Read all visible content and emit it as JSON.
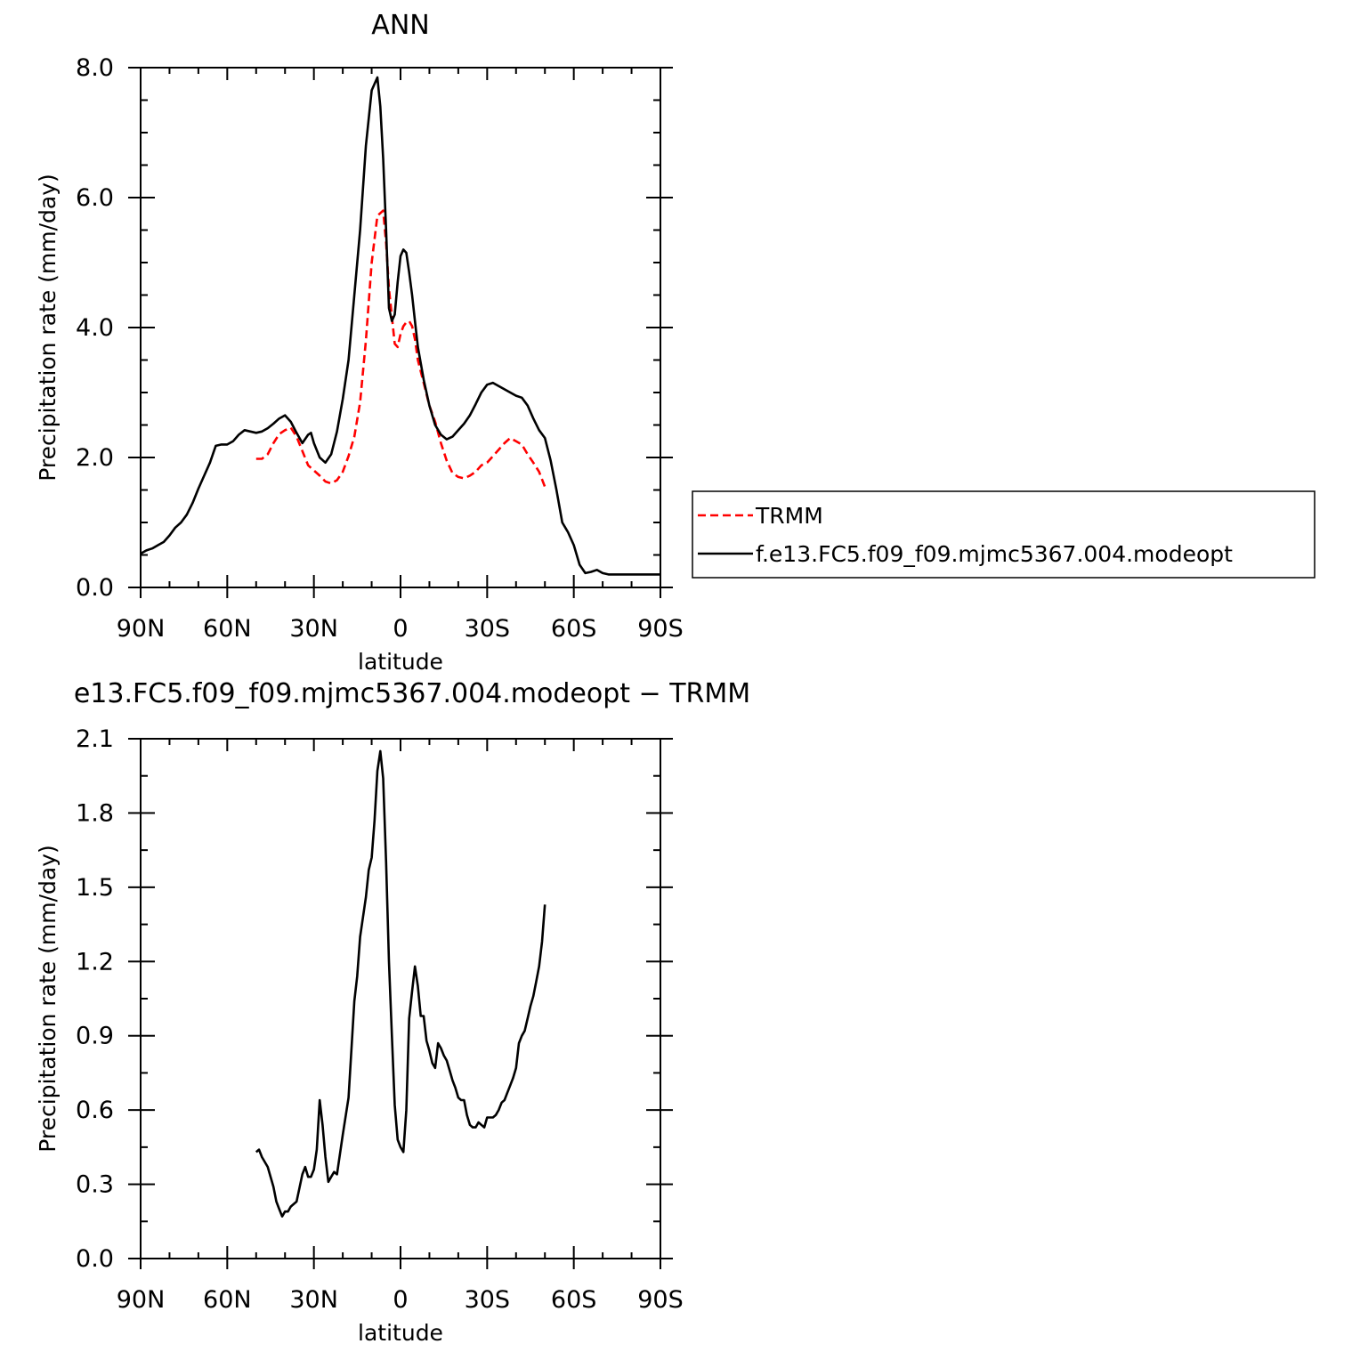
{
  "chart_data": [
    {
      "type": "line",
      "title": "ANN",
      "xlabel": "latitude",
      "ylabel": "Precipitation rate (mm/day)",
      "xlim": [
        90,
        -90
      ],
      "ylim": [
        0,
        8
      ],
      "x_ticks": [
        {
          "value": 90,
          "label": "90N"
        },
        {
          "value": 60,
          "label": "60N"
        },
        {
          "value": 30,
          "label": "30N"
        },
        {
          "value": 0,
          "label": "0"
        },
        {
          "value": -30,
          "label": "30S"
        },
        {
          "value": -60,
          "label": "60S"
        },
        {
          "value": -90,
          "label": "90S"
        }
      ],
      "y_ticks": [
        {
          "value": 0,
          "label": "0.0"
        },
        {
          "value": 2,
          "label": "2.0"
        },
        {
          "value": 4,
          "label": "4.0"
        },
        {
          "value": 6,
          "label": "6.0"
        },
        {
          "value": 8,
          "label": "8.0"
        }
      ],
      "legend": "right",
      "series": [
        {
          "name": "TRMM",
          "color": "#ff0000",
          "dash": "dashed",
          "x": [
            50,
            48,
            46,
            44,
            42,
            40,
            38,
            36,
            34,
            32,
            30,
            28,
            26,
            24,
            22,
            20,
            18,
            16,
            14,
            12,
            10,
            8,
            6,
            5,
            4,
            2,
            1,
            0,
            -1,
            -2,
            -3,
            -4,
            -5,
            -6,
            -8,
            -10,
            -12,
            -14,
            -16,
            -18,
            -20,
            -22,
            -24,
            -26,
            -28,
            -30,
            -32,
            -34,
            -36,
            -38,
            -40,
            -42,
            -44,
            -46,
            -48,
            -50
          ],
          "y": [
            1.98,
            1.98,
            2.05,
            2.22,
            2.36,
            2.42,
            2.46,
            2.32,
            2.1,
            1.88,
            1.8,
            1.72,
            1.63,
            1.6,
            1.65,
            1.78,
            2.02,
            2.32,
            2.85,
            3.8,
            5.0,
            5.72,
            5.8,
            5.3,
            4.6,
            3.75,
            3.7,
            3.9,
            4.02,
            4.08,
            4.1,
            4.02,
            3.82,
            3.5,
            3.15,
            2.8,
            2.55,
            2.22,
            1.95,
            1.76,
            1.7,
            1.68,
            1.72,
            1.78,
            1.88,
            1.92,
            2.02,
            2.12,
            2.22,
            2.3,
            2.25,
            2.2,
            2.05,
            1.92,
            1.78,
            1.55
          ]
        },
        {
          "name": "f.e13.FC5.f09_f09.mjmc5367.004.modeopt",
          "color": "#000000",
          "dash": "solid",
          "x": [
            90,
            88,
            86,
            84,
            82,
            80,
            78,
            76,
            74,
            72,
            70,
            68,
            66,
            64,
            62,
            60,
            58,
            56,
            54,
            52,
            50,
            48,
            46,
            44,
            42,
            40,
            38,
            36,
            34,
            32,
            31,
            30,
            28,
            26,
            24,
            22,
            20,
            18,
            16,
            14,
            12,
            10,
            8,
            7,
            6,
            5,
            4,
            3,
            2,
            1,
            0,
            -1,
            -2,
            -3,
            -4,
            -5,
            -6,
            -8,
            -10,
            -12,
            -14,
            -16,
            -18,
            -20,
            -22,
            -24,
            -26,
            -28,
            -30,
            -32,
            -34,
            -36,
            -38,
            -40,
            -42,
            -44,
            -46,
            -48,
            -50,
            -52,
            -54,
            -56,
            -58,
            -60,
            -62,
            -64,
            -66,
            -68,
            -70,
            -72,
            -74,
            -76,
            -78,
            -80,
            -82,
            -84,
            -86,
            -88,
            -90
          ],
          "y": [
            0.52,
            0.57,
            0.6,
            0.65,
            0.7,
            0.8,
            0.92,
            1.0,
            1.12,
            1.3,
            1.52,
            1.72,
            1.92,
            2.18,
            2.2,
            2.2,
            2.25,
            2.35,
            2.42,
            2.4,
            2.38,
            2.4,
            2.45,
            2.52,
            2.6,
            2.65,
            2.55,
            2.38,
            2.22,
            2.35,
            2.38,
            2.22,
            2.0,
            1.92,
            2.05,
            2.4,
            2.9,
            3.5,
            4.5,
            5.5,
            6.8,
            7.65,
            7.85,
            7.4,
            6.6,
            5.5,
            4.3,
            4.1,
            4.2,
            4.7,
            5.1,
            5.2,
            5.15,
            4.85,
            4.5,
            4.1,
            3.7,
            3.2,
            2.8,
            2.5,
            2.35,
            2.28,
            2.32,
            2.42,
            2.52,
            2.65,
            2.82,
            3.0,
            3.12,
            3.15,
            3.1,
            3.05,
            3.0,
            2.95,
            2.92,
            2.8,
            2.6,
            2.42,
            2.3,
            1.95,
            1.5,
            1.0,
            0.85,
            0.65,
            0.35,
            0.22,
            0.24,
            0.27,
            0.22,
            0.2,
            0.2,
            0.2,
            0.2,
            0.2,
            0.2,
            0.2,
            0.2,
            0.2,
            0.2
          ]
        }
      ]
    },
    {
      "type": "line",
      "title": "e13.FC5.f09_f09.mjmc5367.004.modeopt − TRMM",
      "xlabel": "latitude",
      "ylabel": "Precipitation rate (mm/day)",
      "xlim": [
        90,
        -90
      ],
      "ylim": [
        0,
        2.1
      ],
      "x_ticks": [
        {
          "value": 90,
          "label": "90N"
        },
        {
          "value": 60,
          "label": "60N"
        },
        {
          "value": 30,
          "label": "30N"
        },
        {
          "value": 0,
          "label": "0"
        },
        {
          "value": -30,
          "label": "30S"
        },
        {
          "value": -60,
          "label": "60S"
        },
        {
          "value": -90,
          "label": "90S"
        }
      ],
      "y_ticks": [
        {
          "value": 0,
          "label": "0.0"
        },
        {
          "value": 0.3,
          "label": "0.3"
        },
        {
          "value": 0.6,
          "label": "0.6"
        },
        {
          "value": 0.9,
          "label": "0.9"
        },
        {
          "value": 1.2,
          "label": "1.2"
        },
        {
          "value": 1.5,
          "label": "1.5"
        },
        {
          "value": 1.8,
          "label": "1.8"
        },
        {
          "value": 2.1,
          "label": "2.1"
        }
      ],
      "series": [
        {
          "color": "#000000",
          "dash": "solid",
          "x": [
            50,
            49,
            48,
            46,
            44,
            43,
            42,
            41,
            40,
            39,
            38,
            36,
            34,
            33,
            32,
            31,
            30,
            29,
            28,
            27,
            26,
            25,
            24,
            23,
            22,
            20,
            18,
            16,
            15,
            14,
            12,
            11,
            10,
            9,
            8,
            7,
            6,
            5,
            4,
            3,
            2,
            1,
            0,
            -1,
            -2,
            -3,
            -4,
            -5,
            -6,
            -7,
            -8,
            -9,
            -10,
            -11,
            -12,
            -13,
            -14,
            -15,
            -16,
            -17,
            -18,
            -19,
            -20,
            -21,
            -22,
            -23,
            -24,
            -25,
            -26,
            -27,
            -28,
            -29,
            -30,
            -31,
            -32,
            -33,
            -34,
            -35,
            -36,
            -37,
            -38,
            -39,
            -40,
            -41,
            -42,
            -43,
            -44,
            -45,
            -46,
            -47,
            -48,
            -49,
            -50
          ],
          "y": [
            0.43,
            0.44,
            0.41,
            0.37,
            0.29,
            0.23,
            0.2,
            0.17,
            0.19,
            0.19,
            0.21,
            0.23,
            0.34,
            0.37,
            0.33,
            0.33,
            0.36,
            0.44,
            0.64,
            0.54,
            0.41,
            0.31,
            0.33,
            0.35,
            0.34,
            0.5,
            0.65,
            1.04,
            1.14,
            1.3,
            1.46,
            1.57,
            1.62,
            1.77,
            1.97,
            2.05,
            1.94,
            1.6,
            1.2,
            0.9,
            0.62,
            0.48,
            0.45,
            0.43,
            0.6,
            0.97,
            1.08,
            1.18,
            1.1,
            0.98,
            0.98,
            0.88,
            0.84,
            0.79,
            0.77,
            0.87,
            0.85,
            0.82,
            0.8,
            0.76,
            0.72,
            0.69,
            0.65,
            0.64,
            0.64,
            0.58,
            0.54,
            0.53,
            0.53,
            0.55,
            0.54,
            0.53,
            0.57,
            0.57,
            0.57,
            0.58,
            0.6,
            0.63,
            0.64,
            0.67,
            0.7,
            0.73,
            0.77,
            0.87,
            0.9,
            0.92,
            0.97,
            1.02,
            1.06,
            1.12,
            1.18,
            1.28,
            1.43
          ]
        }
      ]
    }
  ]
}
